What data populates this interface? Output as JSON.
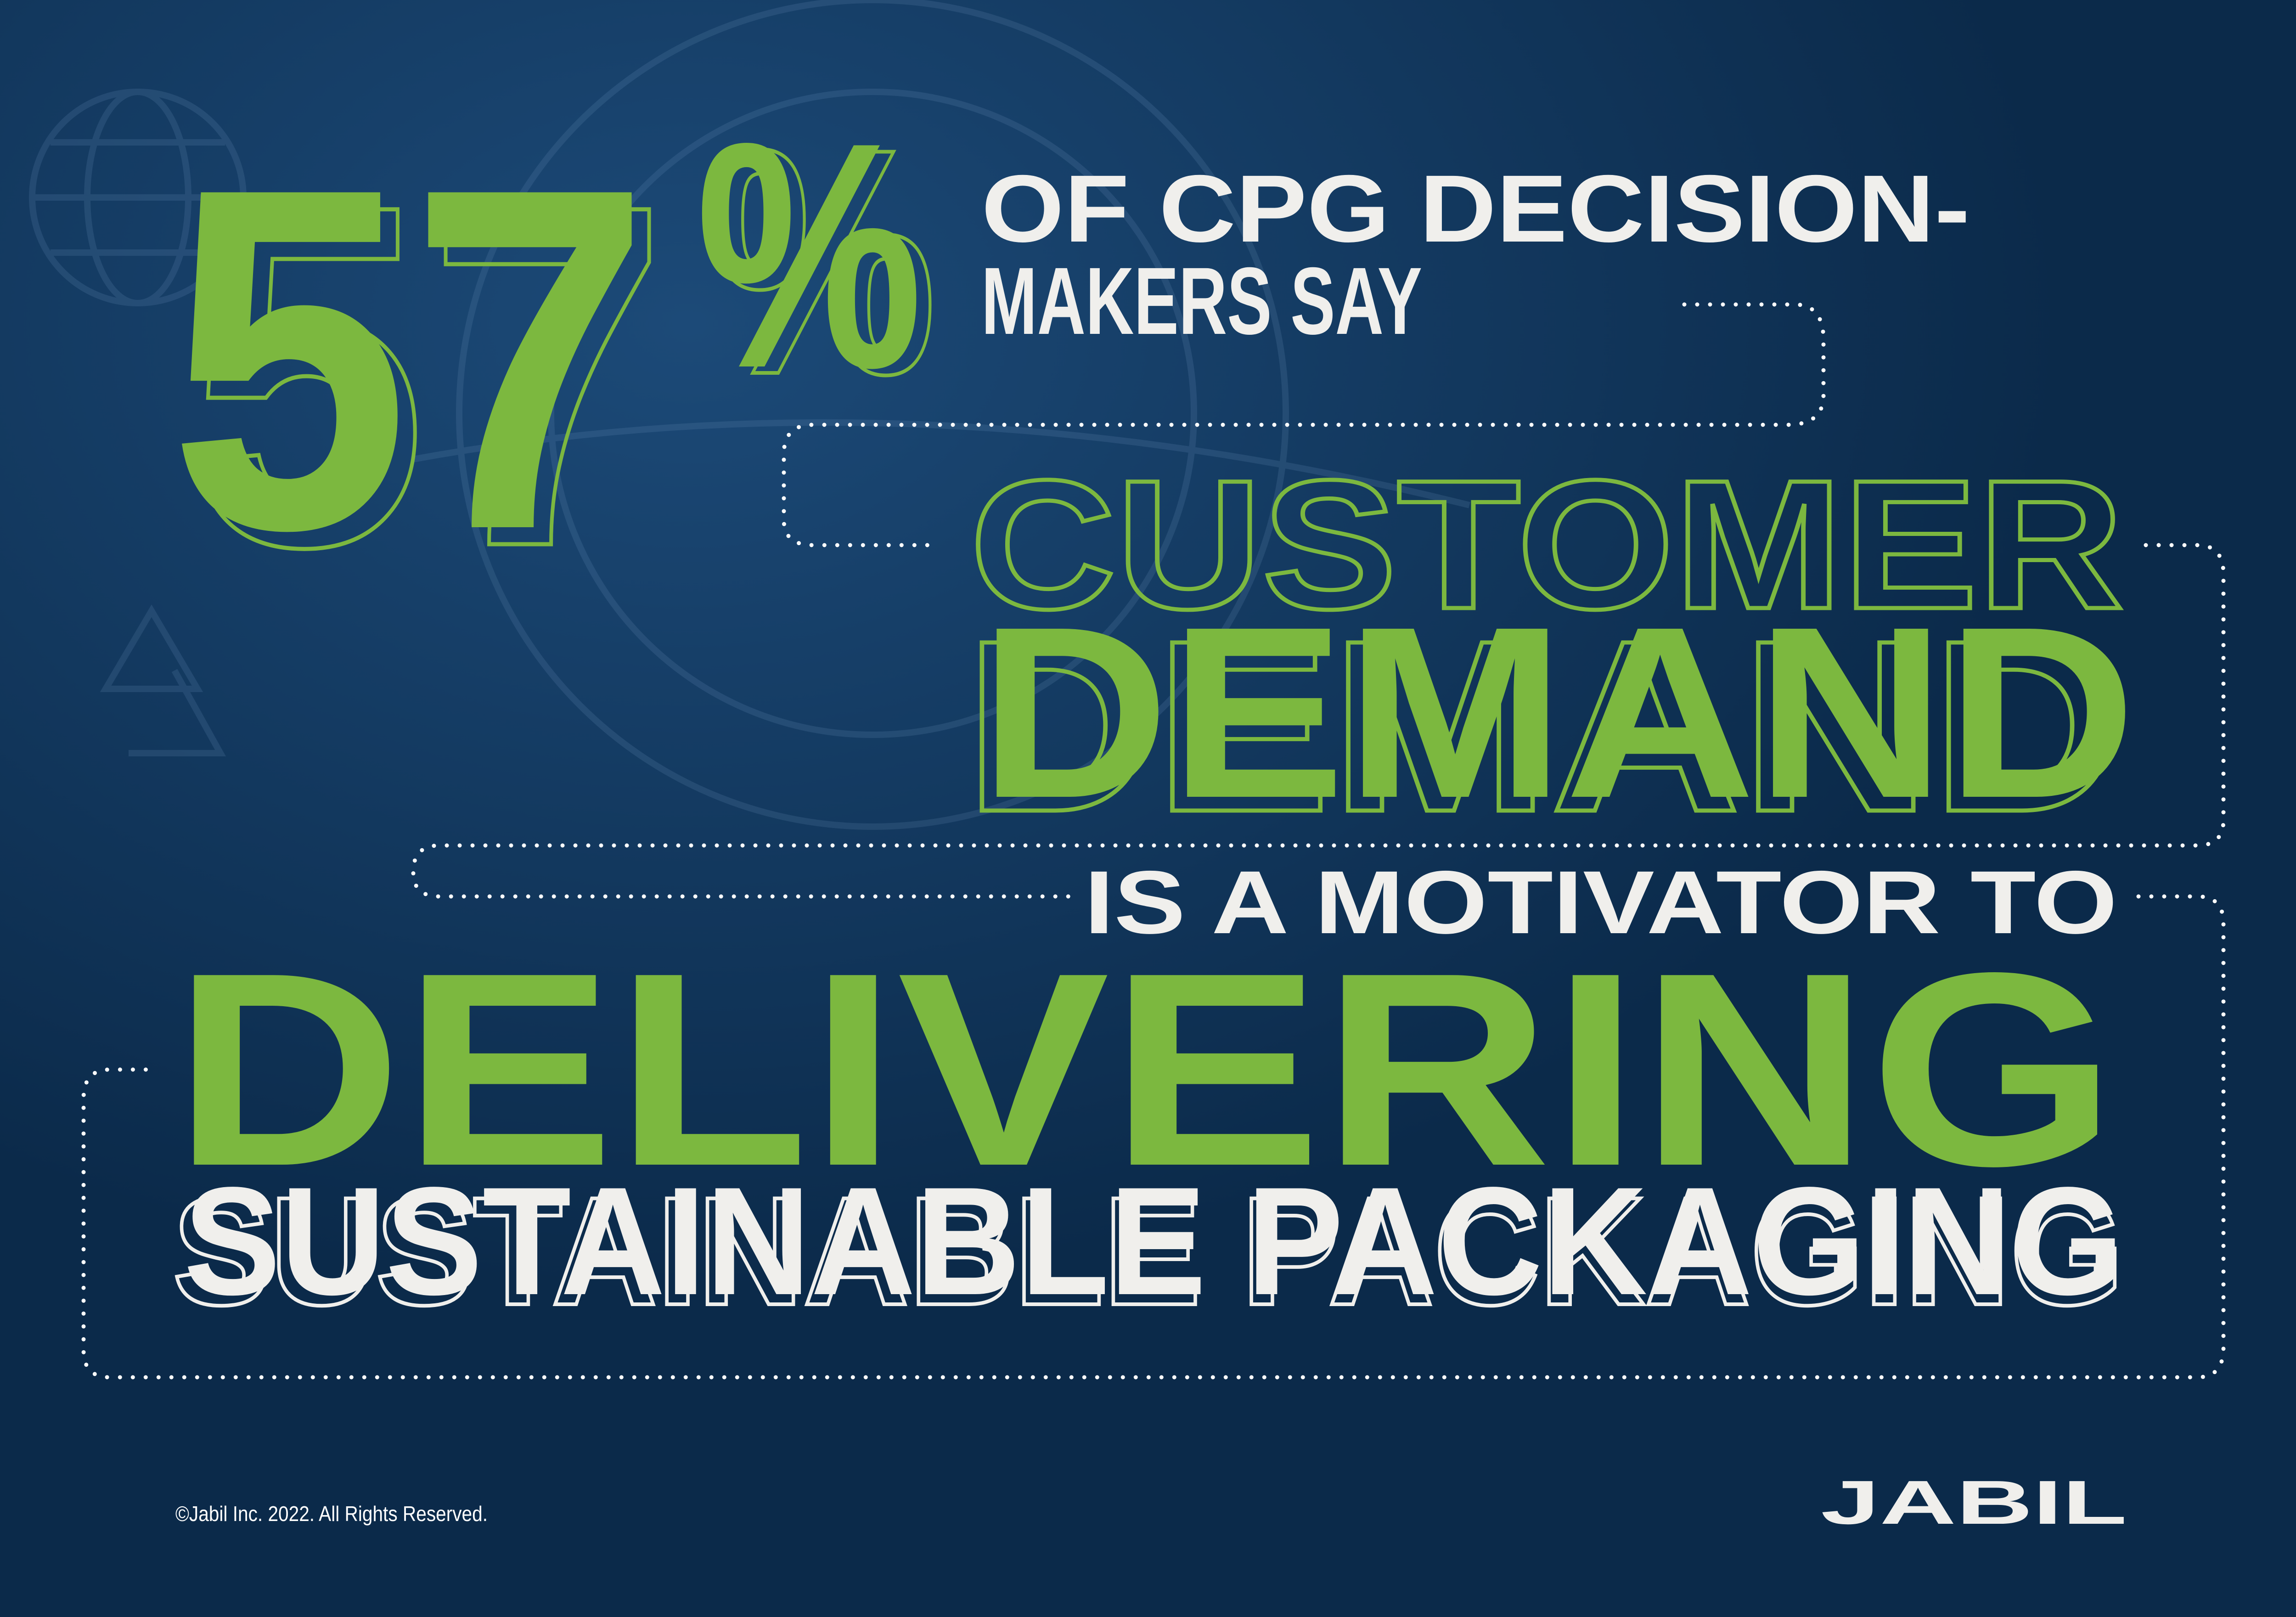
{
  "colors": {
    "background": "#0b2a4a",
    "accent_green": "#7cb83f",
    "text_white": "#f0efec"
  },
  "headline": {
    "stat_number": "57",
    "stat_percent": "%",
    "intro_line1": "OF CPG DECISION-",
    "intro_line2": "MAKERS SAY",
    "line_customer": "CUSTOMER",
    "line_demand": "DEMAND",
    "line_motivator": "IS A MOTIVATOR TO",
    "line_delivering": "DELIVERING",
    "line_sustainable": "SUSTAINABLE PACKAGING"
  },
  "footer": {
    "copyright": "©Jabil Inc. 2022. All Rights Reserved.",
    "logo": "JABIL"
  },
  "background_icons": [
    "globe-icon",
    "recycle-icon",
    "earth-globe-image"
  ]
}
